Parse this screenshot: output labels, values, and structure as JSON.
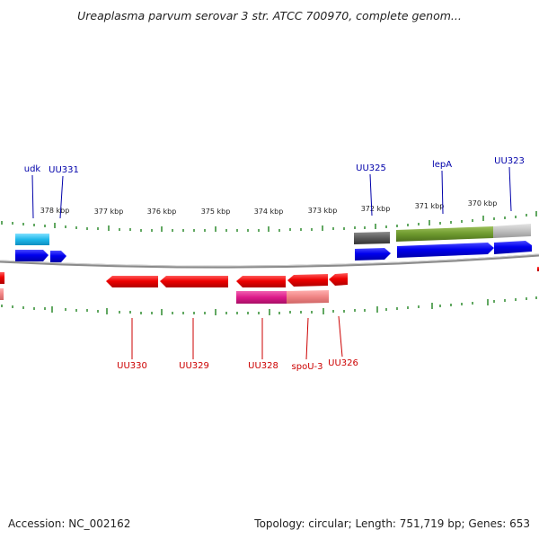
{
  "title": "Ureaplasma parvum serovar 3 str. ATCC 700970, complete genom...",
  "footer": {
    "accession": "Accession: NC_002162",
    "summary": "Topology: circular; Length: 751,719 bp; Genes: 653"
  },
  "scale_labels": [
    "378 kbp",
    "377 kbp",
    "376 kbp",
    "375 kbp",
    "374 kbp",
    "373 kbp",
    "372 kbp",
    "371 kbp",
    "370 kbp"
  ],
  "gene_labels_top": [
    "udk",
    "UU331",
    "UU325",
    "lepA",
    "UU323"
  ],
  "gene_labels_bottom": [
    "UU330",
    "UU329",
    "UU328",
    "spoU-3",
    "UU326"
  ],
  "colors": {
    "forward_label": "#0000aa",
    "reverse_label": "#cc0000",
    "tick": "#2e8b2e",
    "backbone": "#888888"
  }
}
